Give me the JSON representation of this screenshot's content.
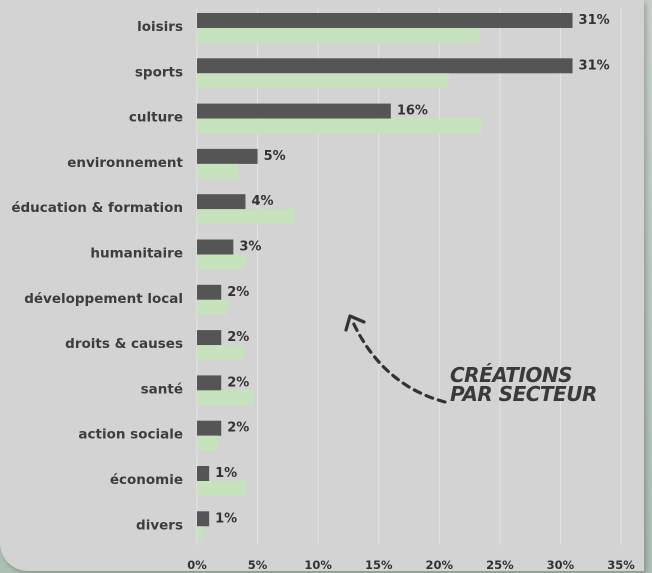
{
  "chart_data": {
    "type": "bar",
    "orientation": "horizontal",
    "categories": [
      "loisirs",
      "sports",
      "culture",
      "environnement",
      "éducation & formation",
      "humanitaire",
      "développement local",
      "droits & causes",
      "santé",
      "action sociale",
      "économie",
      "divers"
    ],
    "series": [
      {
        "values": [
          31,
          31,
          16,
          5,
          4,
          3,
          2,
          2,
          2,
          2,
          1,
          1
        ],
        "value_labels": [
          "31%",
          "31%",
          "16%",
          "5%",
          "4%",
          "3%",
          "2%",
          "2%",
          "2%",
          "2%",
          "1%",
          "1%"
        ],
        "color": "#555555"
      },
      {
        "values": [
          23.3,
          20.8,
          23.5,
          3.4,
          8.0,
          4.0,
          2.5,
          3.9,
          4.7,
          1.7,
          4.0,
          0.5
        ],
        "color": "#c6e3bd"
      }
    ],
    "x_ticks": [
      "0%",
      "5%",
      "10%",
      "15%",
      "20%",
      "25%",
      "30%",
      "35%"
    ],
    "xlim": [
      0,
      35
    ],
    "grid": true,
    "annotation": [
      "CRÉATIONS",
      "PAR SECTEUR"
    ]
  }
}
